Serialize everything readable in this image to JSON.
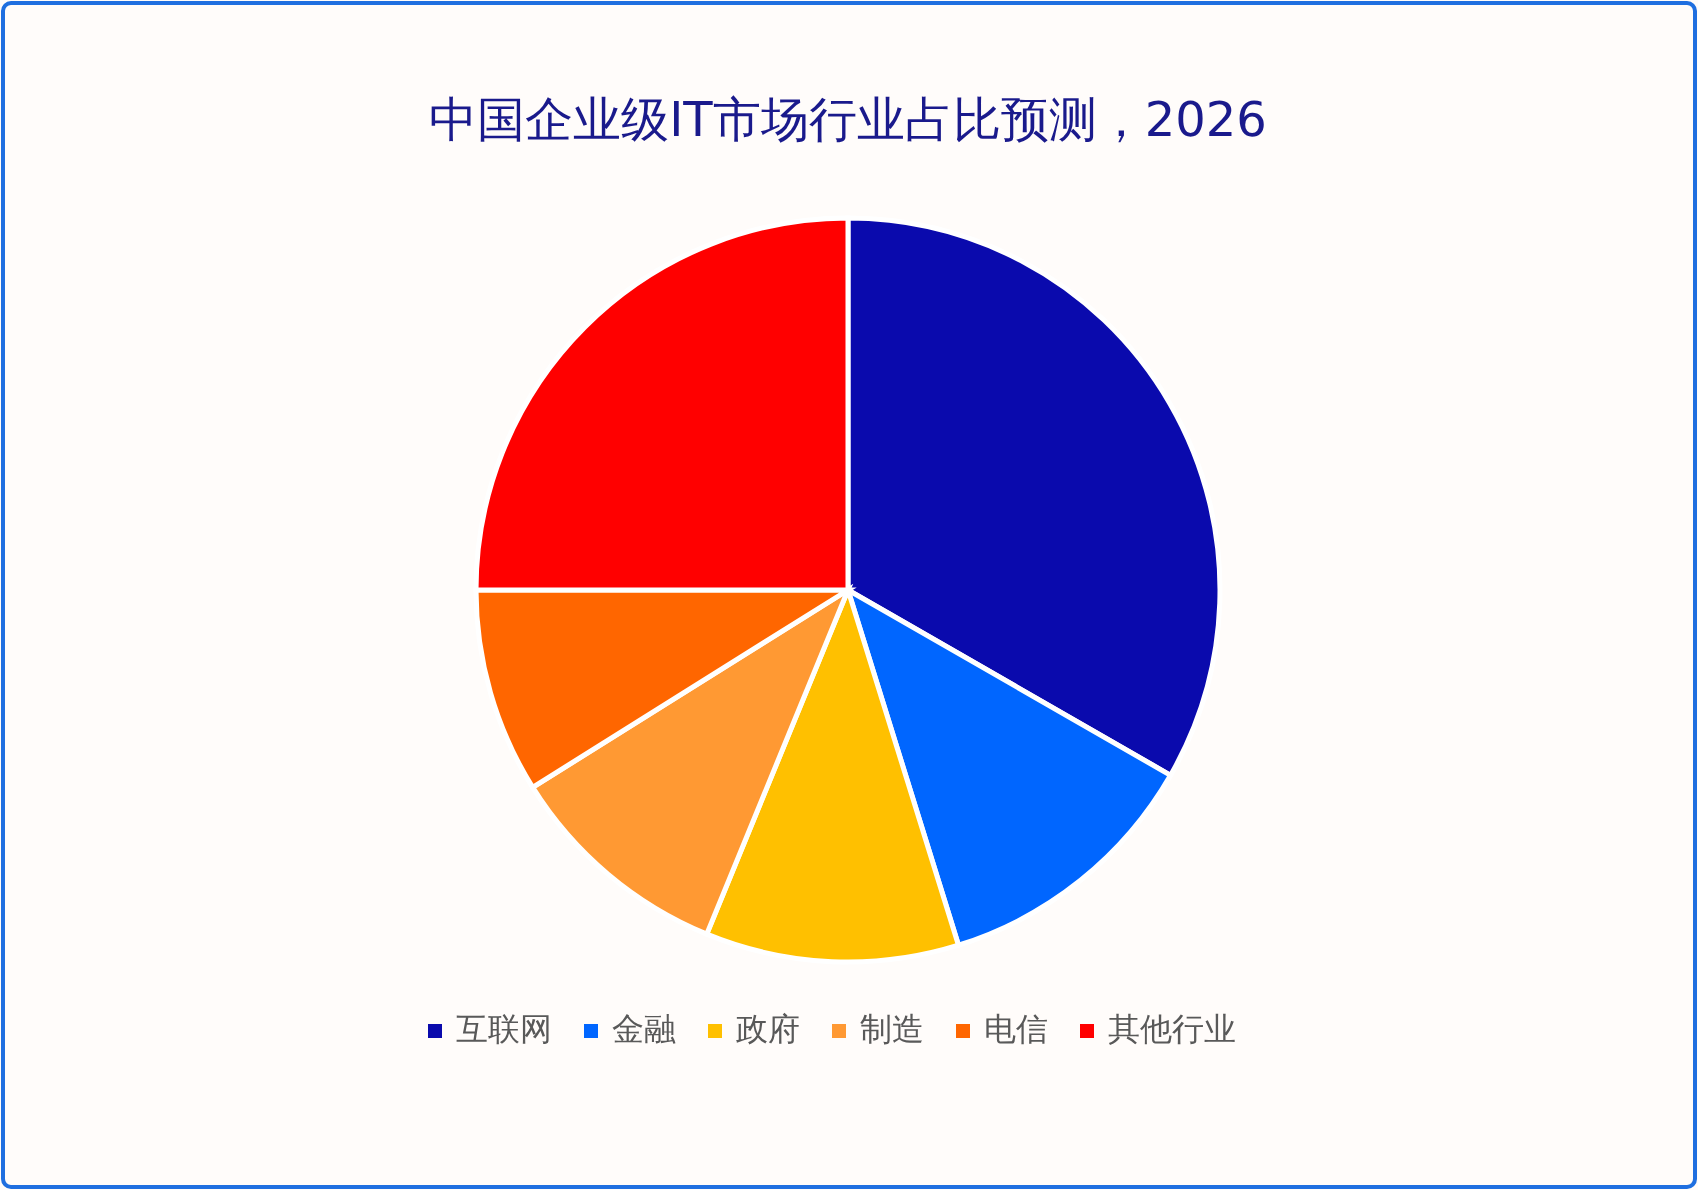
{
  "chart_data": {
    "type": "pie",
    "title": "中国企业级IT市场行业占比预测，2026",
    "categories": [
      "互联网",
      "金融",
      "政府",
      "制造",
      "电信",
      "其他行业"
    ],
    "values": [
      33.3,
      11.9,
      11.0,
      9.9,
      8.9,
      25.0
    ],
    "colors": [
      "#0a0aad",
      "#0066ff",
      "#ffc000",
      "#ff9933",
      "#ff6600",
      "#ff0000"
    ],
    "legend": "bottom"
  }
}
